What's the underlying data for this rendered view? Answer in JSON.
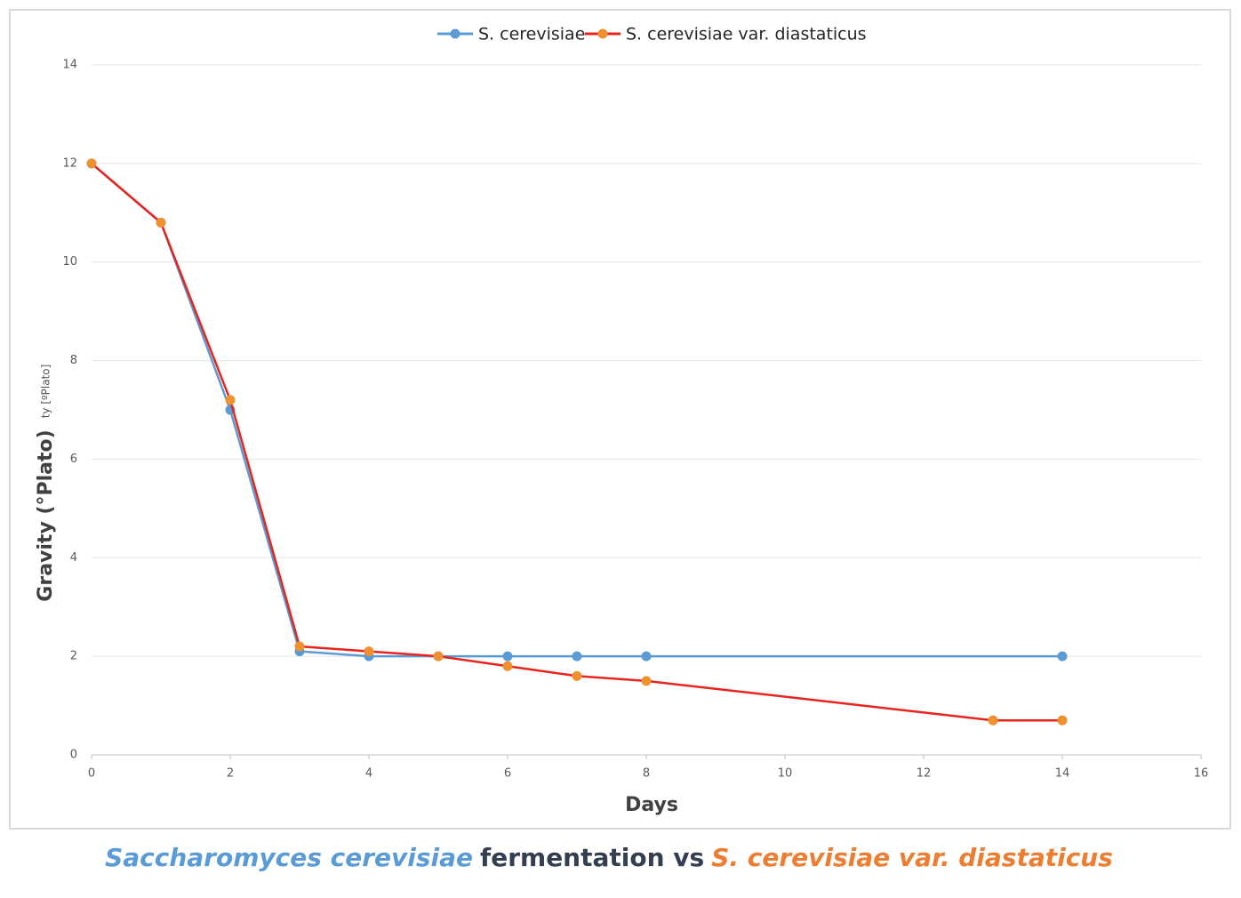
{
  "chart_data": {
    "type": "line",
    "x_label": "Days",
    "y_label": "Gravity (°Plato)",
    "annotations": [
      "ty [ºPlato]"
    ],
    "caption": [
      "Saccharomyces cerevisiae",
      "fermentation vs",
      "S. cerevisiae var. diastaticus"
    ],
    "caption_colors": [
      "#5b9bd5",
      "#333f50",
      "#ed7d31"
    ],
    "series": [
      {
        "name": "S. cerevisiae",
        "color": "#5b9bd5",
        "marker_color": "#5b9bd5",
        "x": [
          0,
          1,
          2,
          3,
          4,
          5,
          6,
          7,
          8,
          14
        ],
        "values": [
          12,
          10.8,
          7,
          2.1,
          2,
          2,
          2,
          2,
          2,
          2
        ]
      },
      {
        "name": "S. cerevisiae var. diastaticus",
        "color": "#e8231c",
        "marker_color": "#f0912f",
        "x": [
          0,
          1,
          2,
          3,
          4,
          5,
          6,
          7,
          8,
          13,
          14
        ],
        "values": [
          12,
          10.8,
          7.2,
          2.2,
          2.1,
          2,
          1.8,
          1.6,
          1.5,
          0.7,
          0.7
        ]
      }
    ],
    "xlim": [
      0,
      16
    ],
    "xticks": [
      0,
      2,
      4,
      6,
      8,
      10,
      12,
      14,
      16
    ],
    "ylim": [
      0,
      14
    ],
    "yticks": [
      0,
      2,
      4,
      6,
      8,
      10,
      12,
      14
    ],
    "grid": true,
    "legend": "top"
  }
}
